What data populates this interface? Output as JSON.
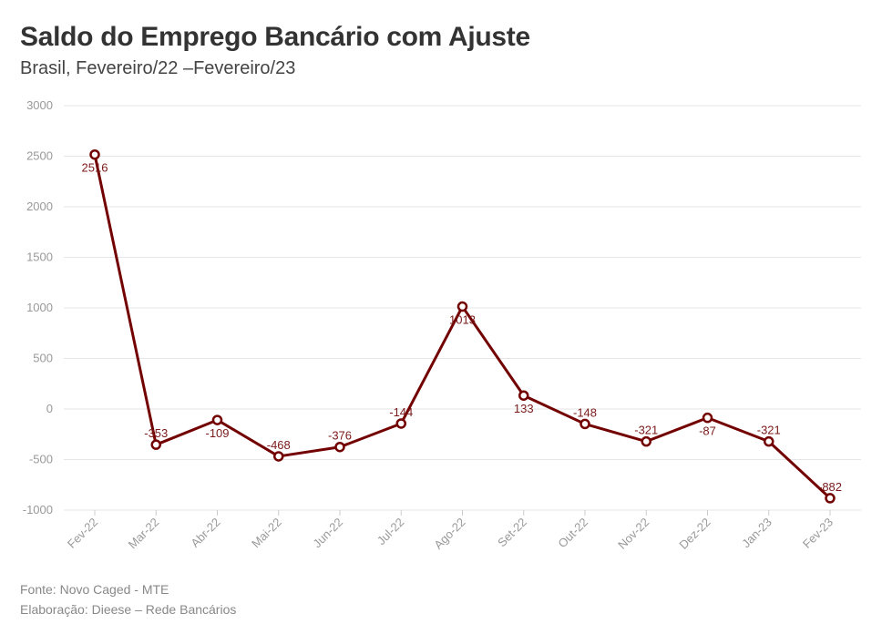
{
  "header": {
    "title": "Saldo do Emprego Bancário com Ajuste",
    "subtitle": "Brasil, Fevereiro/22 –Fevereiro/23"
  },
  "footer": {
    "source": "Fonte: Novo Caged - MTE",
    "credit": "Elaboração: Dieese – Rede Bancários"
  },
  "colors": {
    "line": "#730000",
    "grid": "#e6e6e6",
    "tick": "#999999",
    "label": "#7a1a1a"
  },
  "chart_data": {
    "type": "line",
    "title": "Saldo do Emprego Bancário com Ajuste",
    "subtitle": "Brasil, Fevereiro/22 –Fevereiro/23",
    "xlabel": "",
    "ylabel": "",
    "categories": [
      "Fev-22",
      "Mar-22",
      "Abr-22",
      "Mai-22",
      "Jun-22",
      "Jul-22",
      "Ago-22",
      "Set-22",
      "Out-22",
      "Nov-22",
      "Dez-22",
      "Jan-23",
      "Fev-23"
    ],
    "series": [
      {
        "values": [
          2516,
          -353,
          -109,
          -468,
          -376,
          -144,
          1013,
          133,
          -148,
          -321,
          -87,
          -321,
          -882
        ]
      }
    ],
    "ylim": [
      -1000,
      3000
    ],
    "yticks": [
      3000,
      2500,
      2000,
      1500,
      1000,
      500,
      0,
      -500,
      -1000
    ],
    "grid": true,
    "legend": "none"
  }
}
